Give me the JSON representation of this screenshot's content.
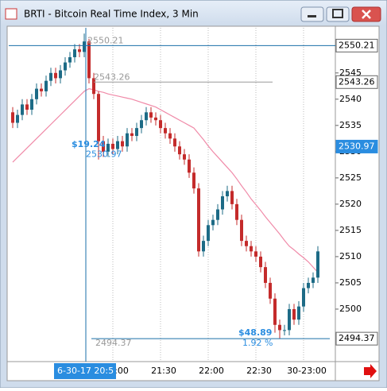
{
  "window": {
    "title": "BRTI - Bitcoin Real Time Index, 3 Min"
  },
  "chart_data": {
    "type": "candlestick",
    "categories": [
      null,
      null,
      null,
      null,
      null,
      null,
      null,
      null,
      null,
      null,
      null,
      null,
      null,
      null,
      null,
      null,
      null,
      null,
      null,
      null,
      null,
      "21:00",
      null,
      null,
      null,
      null,
      null,
      null,
      null,
      null,
      null,
      "21:30",
      null,
      null,
      null,
      null,
      null,
      null,
      null,
      null,
      null,
      "22:00",
      null,
      null,
      null,
      null,
      null,
      null,
      null,
      null,
      null,
      "22:30",
      null,
      null,
      null,
      null,
      null,
      null,
      null,
      null,
      null,
      "30-23:00",
      null,
      null,
      null
    ],
    "open": [
      2537.5,
      2535.5,
      2537,
      2539,
      2538,
      2540,
      2542,
      2541.5,
      2543.5,
      2545,
      2544,
      2545.5,
      2547,
      2548,
      2549.5,
      2549,
      2551,
      2544,
      2541,
      2532,
      2530,
      2531.5,
      2530.5,
      2532,
      2531,
      2533.5,
      2533,
      2534.5,
      2536,
      2537.5,
      2536.5,
      2536,
      2534.5,
      2533.5,
      2532.5,
      2531,
      2529.5,
      2528.5,
      2526,
      2523,
      2511,
      2513,
      2516,
      2517,
      2519,
      2521.5,
      2522.5,
      2520,
      2517,
      2513,
      2512,
      2511,
      2510,
      2508,
      2505,
      2502,
      2497,
      2496,
      2496,
      2500,
      2498,
      2500.5,
      2504,
      2505,
      2506
    ],
    "high": [
      2538.5,
      2538,
      2540,
      2540,
      2541,
      2543,
      2543,
      2544.5,
      2546,
      2546,
      2546.5,
      2548,
      2549,
      2550.5,
      2550.5,
      2552.5,
      2551.5,
      2545,
      2541.5,
      2533,
      2532.5,
      2532.5,
      2533,
      2533,
      2534.5,
      2534.5,
      2535.5,
      2537,
      2538.5,
      2538.5,
      2537.5,
      2537,
      2535.5,
      2534.5,
      2533.5,
      2532,
      2530.5,
      2529.5,
      2527,
      2524,
      2514,
      2517,
      2518,
      2520,
      2522.5,
      2523.5,
      2523.5,
      2521,
      2518,
      2514,
      2513,
      2512,
      2511,
      2509,
      2506,
      2503,
      2498,
      2497,
      2501,
      2501,
      2501.5,
      2505,
      2506,
      2507,
      2512
    ],
    "low": [
      2534.5,
      2534.5,
      2536,
      2537,
      2537,
      2539,
      2540.5,
      2540.5,
      2542.5,
      2543,
      2543,
      2544.5,
      2546,
      2547,
      2548,
      2548,
      2543,
      2540,
      2528.5,
      2529,
      2529,
      2529.5,
      2529.5,
      2530,
      2530,
      2532,
      2532,
      2533.5,
      2535,
      2535.5,
      2535,
      2533.5,
      2532.5,
      2531.5,
      2530,
      2528.5,
      2527.5,
      2525,
      2522,
      2510,
      2510,
      2512,
      2515,
      2516,
      2518,
      2520.5,
      2519,
      2516,
      2512,
      2511,
      2510,
      2509,
      2507,
      2504,
      2501,
      2495.5,
      2494.4,
      2495,
      2495,
      2497,
      2497,
      2499.5,
      2503,
      2504,
      2505
    ],
    "close": [
      2535.5,
      2537,
      2539,
      2538,
      2540,
      2542,
      2541.5,
      2543.5,
      2545,
      2544,
      2545.5,
      2547,
      2548,
      2549.5,
      2549,
      2551,
      2544,
      2541,
      2532,
      2530,
      2531.5,
      2530.5,
      2532,
      2531,
      2533.5,
      2533,
      2534.5,
      2536,
      2537.5,
      2536.5,
      2536,
      2534.5,
      2533.5,
      2532.5,
      2531,
      2529.5,
      2528.5,
      2526,
      2523,
      2511,
      2513,
      2516,
      2517,
      2519,
      2521.5,
      2522.5,
      2520,
      2517,
      2513,
      2512,
      2511,
      2510,
      2508,
      2505,
      2502,
      2497,
      2496,
      2496,
      2500,
      2498,
      2500.5,
      2504,
      2505,
      2506,
      2511
    ],
    "up_color": "#1d6b86",
    "down_color": "#c42b2b",
    "overlays": [
      {
        "color": "#f08aa8",
        "values": [
          2528,
          2528.9,
          2529.8,
          2530.7,
          2531.6,
          2532.5,
          2533.4,
          2534.3,
          2535.2,
          2536.1,
          2537,
          2537.9,
          2538.8,
          2539.7,
          2540.6,
          2541.5,
          2542,
          2541.8,
          2541.5,
          2541.3,
          2541,
          2540.8,
          2540.6,
          2540.4,
          2540.2,
          2540,
          2539.7,
          2539.4,
          2539.1,
          2538.8,
          2538.5,
          2538,
          2537.5,
          2537,
          2536.5,
          2536,
          2535.5,
          2535,
          2534.5,
          2533.4,
          2532.3,
          2531.1,
          2530,
          2529,
          2528,
          2527,
          2526,
          2524.8,
          2523.5,
          2522.3,
          2521,
          2519.9,
          2518.8,
          2517.6,
          2516.5,
          2515.4,
          2514.3,
          2513.1,
          2512,
          2511.3,
          2510.5,
          2509.8,
          2509,
          2508,
          2507
        ]
      }
    ],
    "ylim": [
      2490,
      2553.6
    ],
    "yticks": [
      2500,
      2505,
      2510,
      2515,
      2520,
      2525,
      2530,
      2535,
      2540,
      2545
    ],
    "grid": "x",
    "price_markers": [
      {
        "value": 2550.21,
        "color": "#1a6fa8",
        "line": "full"
      },
      {
        "value": 2543.26,
        "color": "#9a9a9a",
        "line": "partial"
      },
      {
        "value": 2530.97,
        "color": "#2a8de0",
        "line": "none",
        "highlight": true
      },
      {
        "value": 2494.37,
        "color": "#1a6fa8",
        "line": "partial"
      }
    ],
    "crosshair_label": "6-30-17 20:5",
    "annotations": [
      "$19.24",
      "$48.89",
      "1.92 %"
    ]
  }
}
